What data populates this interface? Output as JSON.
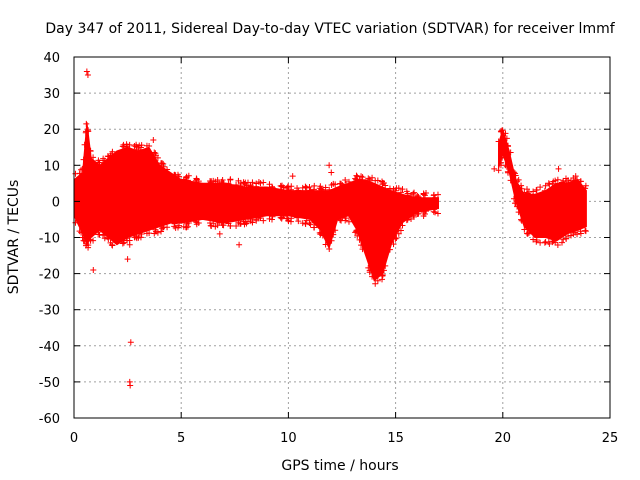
{
  "chart_data": {
    "type": "scatter",
    "title": "Day 347 of 2011, Sidereal Day-to-day VTEC variation (SDTVAR) for receiver lmmf",
    "xlabel": "GPS time / hours",
    "ylabel": "SDTVAR / TECUs",
    "xlim": [
      0,
      25
    ],
    "ylim": [
      -60,
      40
    ],
    "xticks": [
      0,
      5,
      10,
      15,
      20,
      25
    ],
    "yticks": [
      -60,
      -50,
      -40,
      -30,
      -20,
      -10,
      0,
      10,
      20,
      30,
      40
    ],
    "grid": true,
    "marker": "+",
    "color": "#ff0000",
    "series": [
      {
        "name": "SDTVAR",
        "envelope": [
          {
            "x": 0.0,
            "low": -4,
            "high": 6
          },
          {
            "x": 0.4,
            "low": -9,
            "high": 8
          },
          {
            "x": 0.6,
            "low": -12,
            "high": 22
          },
          {
            "x": 0.8,
            "low": -10,
            "high": 12
          },
          {
            "x": 1.2,
            "low": -8,
            "high": 10
          },
          {
            "x": 1.6,
            "low": -10,
            "high": 12
          },
          {
            "x": 2.0,
            "low": -12,
            "high": 14
          },
          {
            "x": 2.5,
            "low": -10,
            "high": 15
          },
          {
            "x": 3.0,
            "low": -9,
            "high": 14
          },
          {
            "x": 3.5,
            "low": -8,
            "high": 15
          },
          {
            "x": 4.0,
            "low": -7,
            "high": 10
          },
          {
            "x": 4.5,
            "low": -6,
            "high": 8
          },
          {
            "x": 5.0,
            "low": -6,
            "high": 6
          },
          {
            "x": 6.0,
            "low": -5,
            "high": 5
          },
          {
            "x": 7.0,
            "low": -6,
            "high": 5
          },
          {
            "x": 8.0,
            "low": -5,
            "high": 4
          },
          {
            "x": 9.0,
            "low": -4,
            "high": 4
          },
          {
            "x": 10.0,
            "low": -4,
            "high": 3
          },
          {
            "x": 11.0,
            "low": -5,
            "high": 3
          },
          {
            "x": 11.5,
            "low": -8,
            "high": 3
          },
          {
            "x": 11.9,
            "low": -13,
            "high": 3
          },
          {
            "x": 12.3,
            "low": -5,
            "high": 4
          },
          {
            "x": 12.8,
            "low": -4,
            "high": 5
          },
          {
            "x": 13.2,
            "low": -8,
            "high": 6
          },
          {
            "x": 13.6,
            "low": -15,
            "high": 6
          },
          {
            "x": 14.0,
            "low": -22,
            "high": 5
          },
          {
            "x": 14.4,
            "low": -20,
            "high": 4
          },
          {
            "x": 14.8,
            "low": -12,
            "high": 3
          },
          {
            "x": 15.3,
            "low": -6,
            "high": 2
          },
          {
            "x": 16.0,
            "low": -3,
            "high": 1
          },
          {
            "x": 17.0,
            "low": -2,
            "high": 1
          },
          {
            "x": 19.8,
            "low": 9,
            "high": 16
          },
          {
            "x": 20.0,
            "low": 13,
            "high": 20
          },
          {
            "x": 20.3,
            "low": 8,
            "high": 14
          },
          {
            "x": 20.6,
            "low": 0,
            "high": 6
          },
          {
            "x": 21.0,
            "low": -7,
            "high": 2
          },
          {
            "x": 21.5,
            "low": -10,
            "high": 2
          },
          {
            "x": 22.0,
            "low": -10,
            "high": 3
          },
          {
            "x": 22.5,
            "low": -11,
            "high": 5
          },
          {
            "x": 23.0,
            "low": -9,
            "high": 5
          },
          {
            "x": 23.5,
            "low": -8,
            "high": 6
          },
          {
            "x": 23.9,
            "low": -7,
            "high": 3
          }
        ],
        "outliers": [
          [
            0.6,
            36
          ],
          [
            0.65,
            35
          ],
          [
            0.55,
            19
          ],
          [
            0.9,
            -19
          ],
          [
            2.5,
            -16
          ],
          [
            2.6,
            -12
          ],
          [
            2.65,
            -39
          ],
          [
            2.6,
            -50
          ],
          [
            2.62,
            -51
          ],
          [
            3.7,
            17
          ],
          [
            3.6,
            13
          ],
          [
            7.7,
            -12
          ],
          [
            6.8,
            -9
          ],
          [
            10.2,
            7
          ],
          [
            11.9,
            10
          ],
          [
            12.0,
            8
          ],
          [
            22.6,
            9
          ],
          [
            23.4,
            7
          ],
          [
            19.6,
            9
          ]
        ]
      }
    ]
  }
}
